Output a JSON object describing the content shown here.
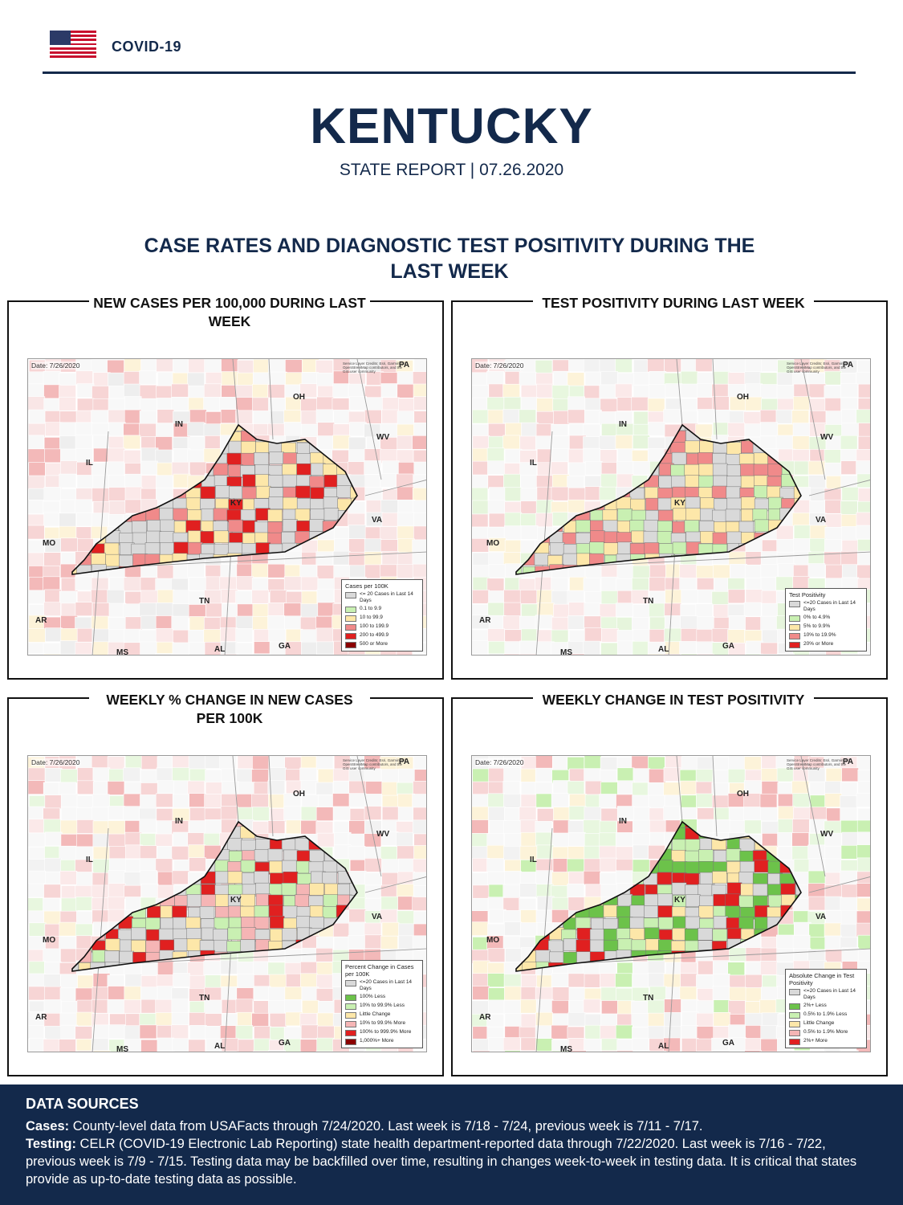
{
  "header": {
    "section_label": "COVID-19",
    "state_name": "KENTUCKY",
    "report_subtitle": "STATE REPORT | 07.26.2020"
  },
  "section_title": "CASE RATES AND DIAGNOSTIC TEST POSITIVITY DURING THE LAST WEEK",
  "maps": [
    {
      "title": "NEW CASES PER 100,000 DURING LAST WEEK",
      "date": "Date: 7/26/2020",
      "credit": "Service Layer Credits: Esri, Garmin, (c) OpenStreetMap contributors, and the GIS user community",
      "state_labels": [
        "PA",
        "OH",
        "IN",
        "IL",
        "WV",
        "KY",
        "VA",
        "MO",
        "TN",
        "AR",
        "MS",
        "AL",
        "GA"
      ],
      "legend": {
        "title": "Cases per 100K",
        "items": [
          {
            "label": "<= 20 Cases in Last 14 Days",
            "color": "#d9d9d9"
          },
          {
            "label": "0.1 to 9.9",
            "color": "#c9f0b2"
          },
          {
            "label": "10 to 99.9",
            "color": "#fde7a9"
          },
          {
            "label": "100 to 199.9",
            "color": "#f08a8a"
          },
          {
            "label": "200 to 499.9",
            "color": "#e02020"
          },
          {
            "label": "500 or More",
            "color": "#8b0000"
          }
        ]
      },
      "ky_palette": [
        "#d9d9d9",
        "#d9d9d9",
        "#d9d9d9",
        "#fde7a9",
        "#fde7a9",
        "#f08a8a",
        "#e02020"
      ],
      "bg_palette": [
        "#f7d5d5",
        "#f3b9b9",
        "#fbe9e9",
        "#fdf3d9",
        "#eeeeee",
        "#f7d5d5",
        "#f9e6e6"
      ]
    },
    {
      "title": "TEST POSITIVITY DURING LAST WEEK",
      "date": "Date: 7/26/2020",
      "credit": "Service Layer Credits: Esri, Garmin, (c) OpenStreetMap contributors, and the GIS user community",
      "state_labels": [
        "PA",
        "OH",
        "IN",
        "IL",
        "WV",
        "KY",
        "VA",
        "MO",
        "TN",
        "AR",
        "MS",
        "AL",
        "GA"
      ],
      "legend": {
        "title": "Test Positivity",
        "items": [
          {
            "label": "<=20 Cases in Last 14 Days",
            "color": "#d9d9d9"
          },
          {
            "label": "0% to 4.9%",
            "color": "#c9f0b2"
          },
          {
            "label": "5% to 9.9%",
            "color": "#fde7a9"
          },
          {
            "label": "10% to 19.9%",
            "color": "#f08a8a"
          },
          {
            "label": "20% or More",
            "color": "#e02020"
          }
        ]
      },
      "ky_palette": [
        "#d9d9d9",
        "#d9d9d9",
        "#c9f0b2",
        "#fde7a9",
        "#f08a8a",
        "#f08a8a",
        "#fde7a9"
      ],
      "bg_palette": [
        "#e6f5dc",
        "#f7d5d5",
        "#fdf3d9",
        "#f2f2f2",
        "#fbe9e9",
        "#e8f7df",
        "#f7d5d5"
      ]
    },
    {
      "title": "WEEKLY % CHANGE IN NEW CASES PER 100K",
      "date": "Date: 7/26/2020",
      "credit": "Service Layer Credits: Esri, Garmin, (c) OpenStreetMap contributors, and the GIS user community",
      "state_labels": [
        "PA",
        "OH",
        "IN",
        "IL",
        "WV",
        "KY",
        "VA",
        "MO",
        "TN",
        "AR",
        "MS",
        "AL",
        "GA"
      ],
      "legend": {
        "title": "Percent Change in Cases per 100K",
        "items": [
          {
            "label": "<=20 Cases in Last 14 Days",
            "color": "#d9d9d9"
          },
          {
            "label": "100% Less",
            "color": "#6cc24a"
          },
          {
            "label": "10% to 99.9% Less",
            "color": "#c9f0b2"
          },
          {
            "label": "Little Change",
            "color": "#fde7a9"
          },
          {
            "label": "10% to 99.9% More",
            "color": "#f5b5b5"
          },
          {
            "label": "100% to 999.9% More",
            "color": "#e02020"
          },
          {
            "label": "1,000%+ More",
            "color": "#8b0000"
          }
        ]
      },
      "ky_palette": [
        "#d9d9d9",
        "#d9d9d9",
        "#d9d9d9",
        "#c9f0b2",
        "#fde7a9",
        "#f5b5b5",
        "#e02020"
      ],
      "bg_palette": [
        "#f7d5d5",
        "#f3b9b9",
        "#e8f7df",
        "#fdf3d9",
        "#f2f2f2",
        "#fbe9e9",
        "#f7d5d5"
      ]
    },
    {
      "title": "WEEKLY CHANGE IN TEST POSITIVITY",
      "date": "Date: 7/26/2020",
      "credit": "Service Layer Credits: Esri, Garmin, (c) OpenStreetMap contributors, and the GIS user community",
      "state_labels": [
        "PA",
        "OH",
        "IN",
        "IL",
        "WV",
        "KY",
        "VA",
        "MO",
        "TN",
        "AR",
        "MS",
        "AL",
        "GA"
      ],
      "legend": {
        "title": "Absolute Change in Test Positivity",
        "items": [
          {
            "label": "<=20 Cases in Last 14 Days",
            "color": "#d9d9d9"
          },
          {
            "label": "2%+ Less",
            "color": "#6cc24a"
          },
          {
            "label": "0.5% to 1.9% Less",
            "color": "#c9f0b2"
          },
          {
            "label": "Little Change",
            "color": "#fde7a9"
          },
          {
            "label": "0.5% to 1.9% More",
            "color": "#f5b5b5"
          },
          {
            "label": "2%+ More",
            "color": "#e02020"
          }
        ]
      },
      "ky_palette": [
        "#d9d9d9",
        "#d9d9d9",
        "#6cc24a",
        "#6cc24a",
        "#c9f0b2",
        "#fde7a9",
        "#e02020"
      ],
      "bg_palette": [
        "#f7d5d5",
        "#e8f7df",
        "#c9f0b2",
        "#fbe9e9",
        "#f2f2f2",
        "#f3b9b9",
        "#fdf3d9"
      ]
    }
  ],
  "data_sources": {
    "title": "DATA SOURCES",
    "cases_label": "Cases:",
    "cases_text": "County-level data from USAFacts through 7/24/2020. Last week is 7/18 - 7/24, previous week is 7/11 - 7/17.",
    "testing_label": "Testing:",
    "testing_text": "CELR (COVID-19 Electronic Lab Reporting) state health department-reported data through 7/22/2020. Last week is 7/16 - 7/22, previous week is 7/9 - 7/15. Testing data may be backfilled over time, resulting in changes week-to-week in testing data. It is critical that states provide as up-to-date testing data as possible."
  }
}
